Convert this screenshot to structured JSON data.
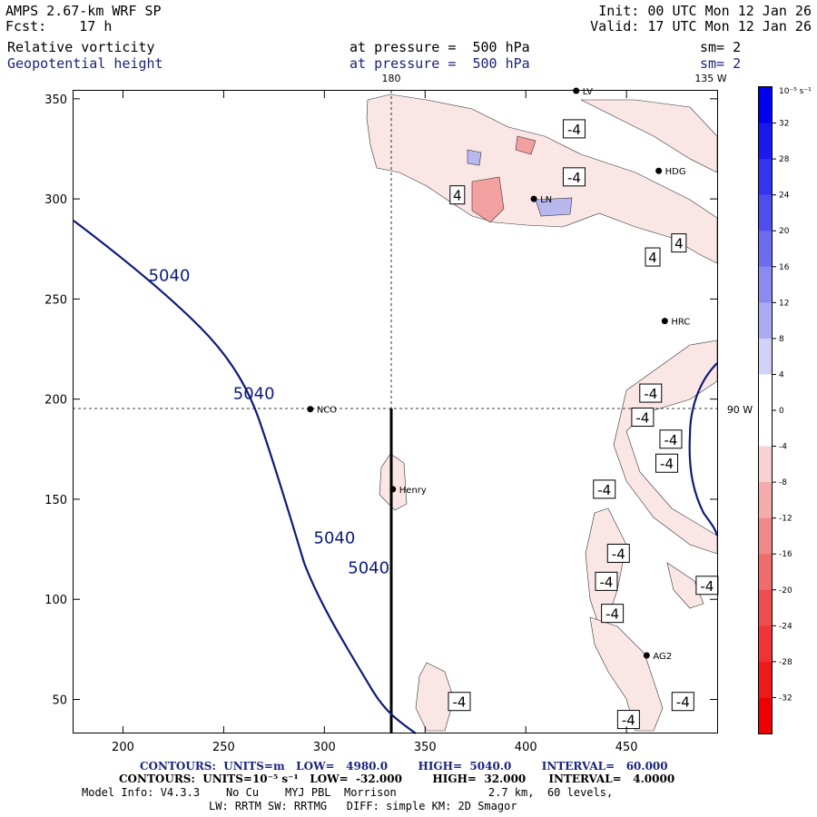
{
  "header": {
    "model_title": "AMPS 2.67-km WRF SP",
    "forecast": "Fcst:    17 h",
    "init": "Init: 00 UTC Mon 12 Jan 26",
    "valid": "Valid: 17 UTC Mon 12 Jan 26",
    "field1_name": "Relative vorticity",
    "field1_level": "at pressure =  500 hPa",
    "field1_sm": "sm= 2",
    "field2_name": "Geopotential height",
    "field2_level": "at pressure =  500 hPa",
    "field2_sm": "sm= 2"
  },
  "map": {
    "x_ticks": [
      "200",
      "250",
      "300",
      "350",
      "400",
      "450"
    ],
    "x_tick_values": [
      200,
      250,
      300,
      350,
      400,
      450
    ],
    "x_range": [
      175,
      495
    ],
    "y_ticks": [
      "50",
      "100",
      "150",
      "200",
      "250",
      "300",
      "350"
    ],
    "y_tick_values": [
      50,
      100,
      150,
      200,
      250,
      300,
      350
    ],
    "y_range": [
      33,
      354
    ],
    "lon_labels": {
      "top_180": "180",
      "top_135w": "135 W",
      "right_90w": "90 W"
    },
    "stations": [
      {
        "name": "NCO",
        "x": 293,
        "y": 195
      },
      {
        "name": "Henry",
        "x": 334,
        "y": 155
      },
      {
        "name": "HDG",
        "x": 466,
        "y": 314
      },
      {
        "name": "HRC",
        "x": 469,
        "y": 239
      },
      {
        "name": "AG2",
        "x": 460,
        "y": 72
      },
      {
        "name": "LN",
        "x": 404,
        "y": 300
      },
      {
        "name": "LV",
        "x": 425,
        "y": 354
      }
    ],
    "height_contour_label": "5040",
    "height_contour_labels_xy": [
      [
        223,
        259
      ],
      [
        265,
        200
      ],
      [
        305,
        128
      ],
      [
        322,
        113
      ]
    ],
    "vorticity_contour_label": "-4",
    "vorticity_labels_xy": [
      [
        424,
        335
      ],
      [
        424,
        311
      ],
      [
        462,
        203
      ],
      [
        458,
        191
      ],
      [
        472,
        180
      ],
      [
        470,
        168
      ],
      [
        439,
        155
      ],
      [
        446,
        123
      ],
      [
        440,
        109
      ],
      [
        490,
        107
      ],
      [
        443,
        93
      ],
      [
        367,
        49
      ],
      [
        478,
        49
      ],
      [
        451,
        40
      ]
    ],
    "positive_labels_xy": [
      [
        366,
        302
      ],
      [
        463,
        271
      ],
      [
        476,
        278
      ]
    ],
    "positive_label": "4"
  },
  "colorbar": {
    "unit_label": "10⁻⁵ s⁻¹",
    "tick_labels": [
      "32",
      "28",
      "24",
      "20",
      "16",
      "12",
      "8",
      "4",
      "0",
      "-4",
      "-8",
      "-12",
      "-16",
      "-20",
      "-24",
      "-28",
      "-32"
    ],
    "colors": [
      "#0000ee",
      "#1a1aee",
      "#3434ee",
      "#4e4eee",
      "#6c6cee",
      "#8a8af0",
      "#ababf4",
      "#d2d2f8",
      "#ffffff",
      "#ffffff",
      "#f8d2d2",
      "#f4abab",
      "#f08a8a",
      "#ee6c6c",
      "#ee4e4e",
      "#ee3434",
      "#ee1a1a",
      "#ee0000"
    ]
  },
  "footer": {
    "line1": "CONTOURS:  UNITS=m   LOW=   4980.0        HIGH=  5040.0        INTERVAL=   60.000",
    "line2": "CONTOURS:  UNITS=10⁻⁵ s⁻¹   LOW=  -32.000        HIGH=  32.000      INTERVAL=   4.0000",
    "line3": "Model Info: V4.3.3    No Cu    MYJ PBL  Morrison              2.7 km,  60 levels,",
    "line4": "LW: RRTM SW: RRTMG   DIFF: simple KM: 2D Smagor"
  },
  "colors": {
    "height_contour": "#0d1a7a",
    "vort_neg_fill": "#f9dede",
    "vort_pos_fill": "#c8c8f0",
    "title_blue": "#1a237e"
  }
}
